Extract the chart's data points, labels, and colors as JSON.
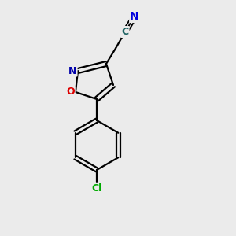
{
  "background_color": "#ebebeb",
  "bond_color": "#000000",
  "atom_colors": {
    "N_nitrile": "#0000dd",
    "N_ring": "#0000aa",
    "O_ring": "#dd0000",
    "Cl": "#00aa00",
    "C": "#1a6060"
  },
  "figsize": [
    3.0,
    3.0
  ],
  "dpi": 100,
  "xlim": [
    0,
    10
  ],
  "ylim": [
    0,
    10
  ]
}
